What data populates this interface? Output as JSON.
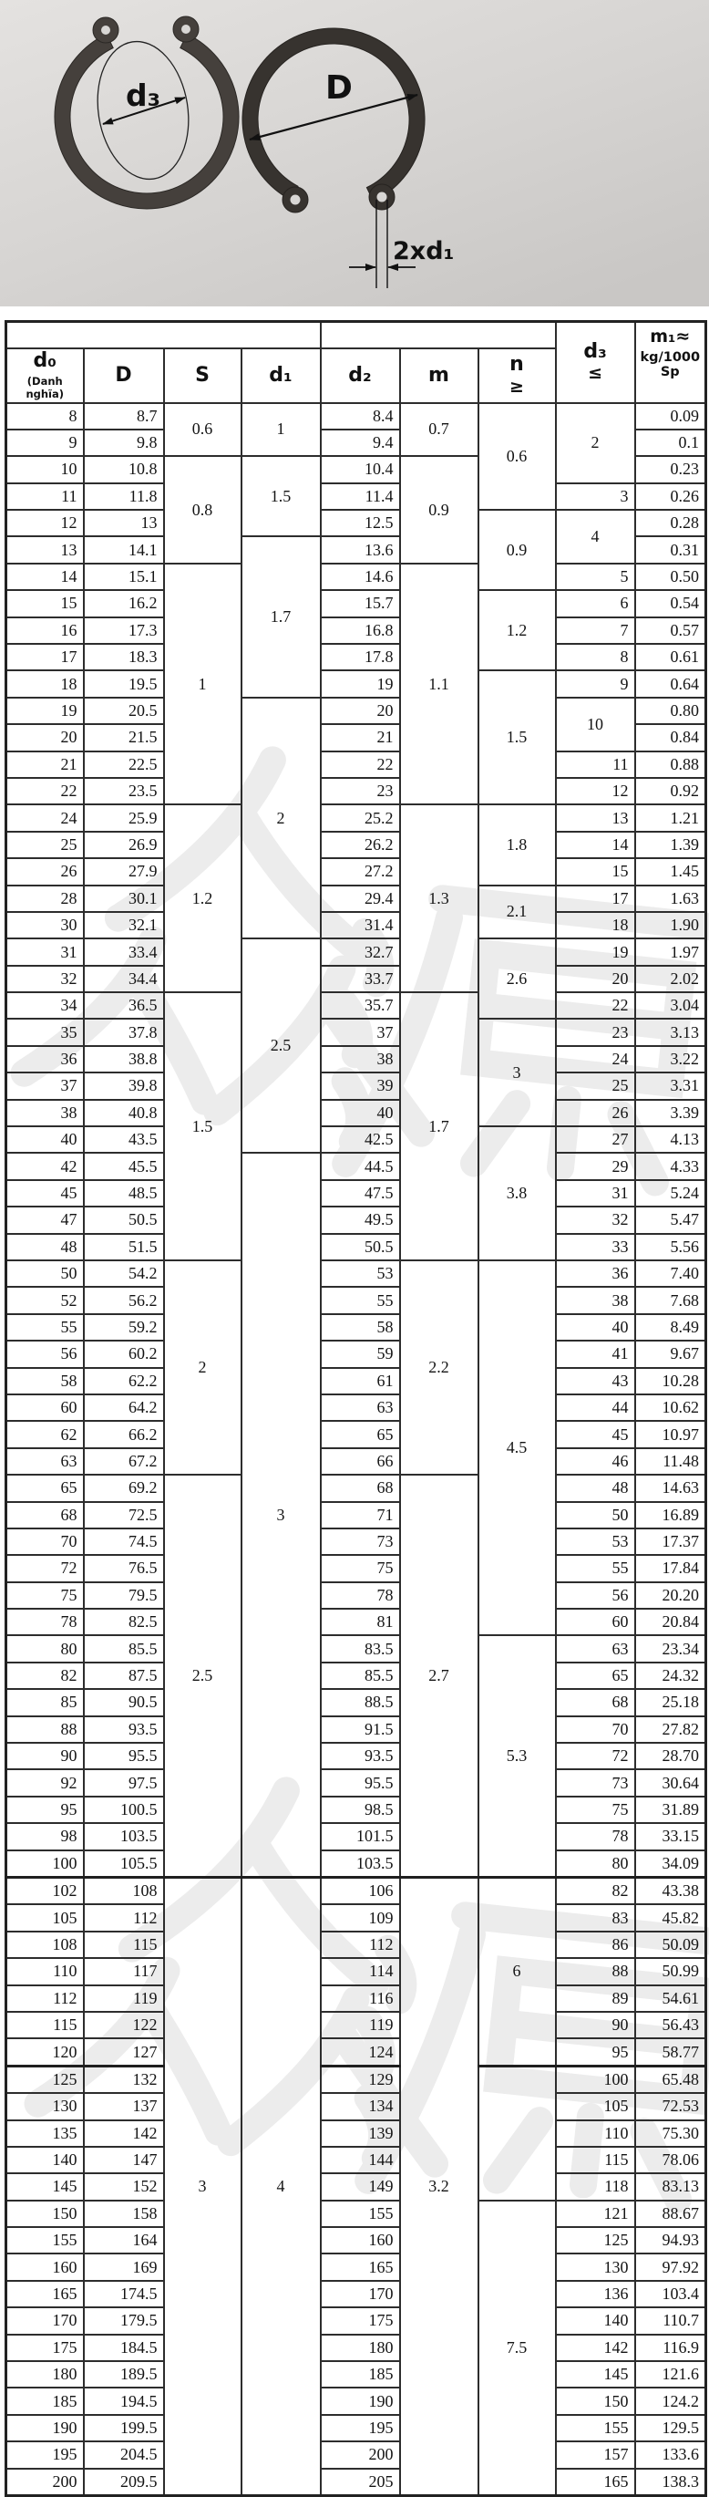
{
  "photo": {
    "left_ring_label": "d₃",
    "right_ring_label": "D",
    "wire_label": "2xd₁"
  },
  "watermark": {
    "text": "众源"
  },
  "table": {
    "header": {
      "d0": "d₀",
      "d0_note": "(Danh nghĩa)",
      "D": "D",
      "S": "S",
      "d1": "d₁",
      "d2": "d₂",
      "m": "m",
      "n": "n",
      "n_cond": "≥",
      "d3": "d₃",
      "d3_cond": "≤",
      "m1": "m₁≈",
      "m1_unit": "kg/1000 Sp"
    },
    "rows": {
      "d0": [
        "8",
        "9",
        "10",
        "11",
        "12",
        "13",
        "14",
        "15",
        "16",
        "17",
        "18",
        "19",
        "20",
        "21",
        "22",
        "24",
        "25",
        "26",
        "28",
        "30",
        "31",
        "32",
        "34",
        "35",
        "36",
        "37",
        "38",
        "40",
        "42",
        "45",
        "47",
        "48",
        "50",
        "52",
        "55",
        "56",
        "58",
        "60",
        "62",
        "63",
        "65",
        "68",
        "70",
        "72",
        "75",
        "78",
        "80",
        "82",
        "85",
        "88",
        "90",
        "92",
        "95",
        "98",
        "100",
        "102",
        "105",
        "108",
        "110",
        "112",
        "115",
        "120",
        "125",
        "130",
        "135",
        "140",
        "145",
        "150",
        "155",
        "160",
        "165",
        "170",
        "175",
        "180",
        "185",
        "190",
        "195",
        "200"
      ],
      "D": [
        "8.7",
        "9.8",
        "10.8",
        "11.8",
        "13",
        "14.1",
        "15.1",
        "16.2",
        "17.3",
        "18.3",
        "19.5",
        "20.5",
        "21.5",
        "22.5",
        "23.5",
        "25.9",
        "26.9",
        "27.9",
        "30.1",
        "32.1",
        "33.4",
        "34.4",
        "36.5",
        "37.8",
        "38.8",
        "39.8",
        "40.8",
        "43.5",
        "45.5",
        "48.5",
        "50.5",
        "51.5",
        "54.2",
        "56.2",
        "59.2",
        "60.2",
        "62.2",
        "64.2",
        "66.2",
        "67.2",
        "69.2",
        "72.5",
        "74.5",
        "76.5",
        "79.5",
        "82.5",
        "85.5",
        "87.5",
        "90.5",
        "93.5",
        "95.5",
        "97.5",
        "100.5",
        "103.5",
        "105.5",
        "108",
        "112",
        "115",
        "117",
        "119",
        "122",
        "127",
        "132",
        "137",
        "142",
        "147",
        "152",
        "158",
        "164",
        "169",
        "174.5",
        "179.5",
        "184.5",
        "189.5",
        "194.5",
        "199.5",
        "204.5",
        "209.5"
      ],
      "d2": [
        "8.4",
        "9.4",
        "10.4",
        "11.4",
        "12.5",
        "13.6",
        "14.6",
        "15.7",
        "16.8",
        "17.8",
        "19",
        "20",
        "21",
        "22",
        "23",
        "25.2",
        "26.2",
        "27.2",
        "29.4",
        "31.4",
        "32.7",
        "33.7",
        "35.7",
        "37",
        "38",
        "39",
        "40",
        "42.5",
        "44.5",
        "47.5",
        "49.5",
        "50.5",
        "53",
        "55",
        "58",
        "59",
        "61",
        "63",
        "65",
        "66",
        "68",
        "71",
        "73",
        "75",
        "78",
        "81",
        "83.5",
        "85.5",
        "88.5",
        "91.5",
        "93.5",
        "95.5",
        "98.5",
        "101.5",
        "103.5",
        "106",
        "109",
        "112",
        "114",
        "116",
        "119",
        "124",
        "129",
        "134",
        "139",
        "144",
        "149",
        "155",
        "160",
        "165",
        "170",
        "175",
        "180",
        "185",
        "190",
        "195",
        "200",
        "205"
      ],
      "m1": [
        "0.09",
        "0.1",
        "0.23",
        "0.26",
        "0.28",
        "0.31",
        "0.50",
        "0.54",
        "0.57",
        "0.61",
        "0.64",
        "0.80",
        "0.84",
        "0.88",
        "0.92",
        "1.21",
        "1.39",
        "1.45",
        "1.63",
        "1.90",
        "1.97",
        "2.02",
        "3.04",
        "3.13",
        "3.22",
        "3.31",
        "3.39",
        "4.13",
        "4.33",
        "5.24",
        "5.47",
        "5.56",
        "7.40",
        "7.68",
        "8.49",
        "9.67",
        "10.28",
        "10.62",
        "10.97",
        "11.48",
        "14.63",
        "16.89",
        "17.37",
        "17.84",
        "20.20",
        "20.84",
        "23.34",
        "24.32",
        "25.18",
        "27.82",
        "28.70",
        "30.64",
        "31.89",
        "33.15",
        "34.09",
        "43.38",
        "45.82",
        "50.09",
        "50.99",
        "54.61",
        "56.43",
        "58.77",
        "65.48",
        "72.53",
        "75.30",
        "78.06",
        "83.13",
        "88.67",
        "94.93",
        "97.92",
        "103.4",
        "110.7",
        "116.9",
        "121.6",
        "124.2",
        "129.5",
        "133.6",
        "138.3"
      ]
    },
    "merged": {
      "S": [
        {
          "v": "0.6",
          "n": 2
        },
        {
          "v": "0.8",
          "n": 4
        },
        {
          "v": "1",
          "n": 9
        },
        {
          "v": "1.2",
          "n": 7
        },
        {
          "v": "1.5",
          "n": 10
        },
        {
          "v": "2",
          "n": 8
        },
        {
          "v": "2.5",
          "n": 15
        },
        {
          "v": "3",
          "n": 23
        }
      ],
      "d1": [
        {
          "v": "1",
          "n": 2
        },
        {
          "v": "1.5",
          "n": 3
        },
        {
          "v": "1.7",
          "n": 6
        },
        {
          "v": "2",
          "n": 9
        },
        {
          "v": "2.5",
          "n": 8
        },
        {
          "v": "3",
          "n": 27
        },
        {
          "v": "4",
          "n": 23
        }
      ],
      "m": [
        {
          "v": "0.7",
          "n": 2
        },
        {
          "v": "0.9",
          "n": 4
        },
        {
          "v": "1.1",
          "n": 9
        },
        {
          "v": "1.3",
          "n": 7
        },
        {
          "v": "1.7",
          "n": 10
        },
        {
          "v": "2.2",
          "n": 8
        },
        {
          "v": "2.7",
          "n": 15
        },
        {
          "v": "3.2",
          "n": 23
        }
      ],
      "n": [
        {
          "v": "0.6",
          "n": 4
        },
        {
          "v": "0.9",
          "n": 3
        },
        {
          "v": "1.2",
          "n": 3
        },
        {
          "v": "1.5",
          "n": 5
        },
        {
          "v": "1.8",
          "n": 3
        },
        {
          "v": "2.1",
          "n": 2
        },
        {
          "v": "2.6",
          "n": 3
        },
        {
          "v": "3",
          "n": 4
        },
        {
          "v": "3.8",
          "n": 5
        },
        {
          "v": "4.5",
          "n": 14
        },
        {
          "v": "5.3",
          "n": 9
        },
        {
          "v": "6",
          "n": 7
        },
        {
          "v": "",
          "n": 5
        },
        {
          "v": "7.5",
          "n": 11
        }
      ],
      "d3": [
        {
          "v": "2",
          "n": 3
        },
        {
          "v": "3",
          "n": 1
        },
        {
          "v": "4",
          "n": 2
        },
        {
          "v": "5",
          "n": 1
        },
        {
          "v": "6",
          "n": 1
        },
        {
          "v": "7",
          "n": 1
        },
        {
          "v": "8",
          "n": 1
        },
        {
          "v": "9",
          "n": 1
        },
        {
          "v": "10",
          "n": 2
        },
        {
          "v": "11",
          "n": 1
        },
        {
          "v": "12",
          "n": 1
        },
        {
          "v": "13",
          "n": 1
        },
        {
          "v": "14",
          "n": 1
        },
        {
          "v": "15",
          "n": 1
        },
        {
          "v": "17",
          "n": 1
        },
        {
          "v": "18",
          "n": 1
        },
        {
          "v": "19",
          "n": 1
        },
        {
          "v": "20",
          "n": 1
        },
        {
          "v": "22",
          "n": 1
        },
        {
          "v": "23",
          "n": 1
        },
        {
          "v": "24",
          "n": 1
        },
        {
          "v": "25",
          "n": 1
        },
        {
          "v": "26",
          "n": 1
        },
        {
          "v": "27",
          "n": 1
        },
        {
          "v": "29",
          "n": 1
        },
        {
          "v": "31",
          "n": 1
        },
        {
          "v": "32",
          "n": 1
        },
        {
          "v": "33",
          "n": 1
        },
        {
          "v": "36",
          "n": 1
        },
        {
          "v": "38",
          "n": 1
        },
        {
          "v": "40",
          "n": 1
        },
        {
          "v": "41",
          "n": 1
        },
        {
          "v": "43",
          "n": 1
        },
        {
          "v": "44",
          "n": 1
        },
        {
          "v": "45",
          "n": 1
        },
        {
          "v": "46",
          "n": 1
        },
        {
          "v": "48",
          "n": 1
        },
        {
          "v": "50",
          "n": 1
        },
        {
          "v": "53",
          "n": 1
        },
        {
          "v": "55",
          "n": 1
        },
        {
          "v": "56",
          "n": 1
        },
        {
          "v": "60",
          "n": 1
        },
        {
          "v": "63",
          "n": 1
        },
        {
          "v": "65",
          "n": 1
        },
        {
          "v": "68",
          "n": 1
        },
        {
          "v": "70",
          "n": 1
        },
        {
          "v": "72",
          "n": 1
        },
        {
          "v": "73",
          "n": 1
        },
        {
          "v": "75",
          "n": 1
        },
        {
          "v": "78",
          "n": 1
        },
        {
          "v": "80",
          "n": 1
        },
        {
          "v": "82",
          "n": 1
        },
        {
          "v": "83",
          "n": 1
        },
        {
          "v": "86",
          "n": 1
        },
        {
          "v": "88",
          "n": 1
        },
        {
          "v": "89",
          "n": 1
        },
        {
          "v": "90",
          "n": 1
        },
        {
          "v": "95",
          "n": 1
        },
        {
          "v": "100",
          "n": 1
        },
        {
          "v": "105",
          "n": 1
        },
        {
          "v": "110",
          "n": 1
        },
        {
          "v": "115",
          "n": 1
        },
        {
          "v": "118",
          "n": 1
        },
        {
          "v": "121",
          "n": 1
        },
        {
          "v": "125",
          "n": 1
        },
        {
          "v": "130",
          "n": 1
        },
        {
          "v": "136",
          "n": 1
        },
        {
          "v": "140",
          "n": 1
        },
        {
          "v": "142",
          "n": 1
        },
        {
          "v": "145",
          "n": 1
        },
        {
          "v": "150",
          "n": 1
        },
        {
          "v": "155",
          "n": 1
        },
        {
          "v": "157",
          "n": 1
        },
        {
          "v": "165",
          "n": 1
        }
      ]
    }
  }
}
